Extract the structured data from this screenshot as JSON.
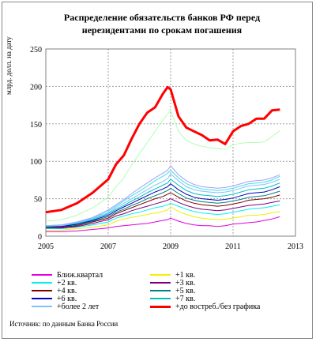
{
  "chart_data": {
    "type": "line",
    "title": "Распределение обязательств банков РФ перед нерезидентами по срокам погашения",
    "ylabel": "млрд. долл. на дату",
    "xlabel": "",
    "xlim": [
      2005,
      2013
    ],
    "ylim": [
      0,
      250
    ],
    "x_ticks": [
      "2005",
      "2007",
      "2009",
      "2011",
      "2013"
    ],
    "y_ticks": [
      "0",
      "50",
      "100",
      "150",
      "200",
      "250"
    ],
    "grid": true,
    "legend_position": "bottom",
    "x": [
      2005.0,
      2005.5,
      2006.0,
      2006.5,
      2007.0,
      2007.25,
      2007.5,
      2007.75,
      2008.0,
      2008.25,
      2008.5,
      2008.75,
      2008.9,
      2009.0,
      2009.25,
      2009.5,
      2009.75,
      2010.0,
      2010.25,
      2010.5,
      2010.75,
      2011.0,
      2011.25,
      2011.5,
      2011.75,
      2012.0,
      2012.25,
      2012.5
    ],
    "series": [
      {
        "name": "Ближ.квартал",
        "color": "#e000e0",
        "width": 1,
        "values": [
          6,
          6,
          7,
          9,
          11,
          13,
          14,
          15,
          16,
          17,
          19,
          21,
          22,
          24,
          20,
          17,
          15,
          14,
          14,
          13,
          14,
          16,
          17,
          18,
          19,
          21,
          23,
          26
        ]
      },
      {
        "name": "+1 кв.",
        "color": "#f0f000",
        "width": 1,
        "values": [
          8,
          8,
          10,
          12,
          15,
          20,
          23,
          25,
          27,
          29,
          31,
          33,
          35,
          39,
          33,
          29,
          26,
          24,
          23,
          22,
          23,
          24,
          26,
          28,
          28,
          29,
          31,
          33
        ]
      },
      {
        "name": "+2 кв.",
        "color": "#00f0f0",
        "width": 1,
        "values": [
          10,
          10,
          12,
          15,
          19,
          24,
          27,
          30,
          32,
          35,
          38,
          40,
          42,
          44,
          40,
          36,
          33,
          31,
          30,
          29,
          30,
          32,
          34,
          36,
          37,
          38,
          40,
          42
        ]
      },
      {
        "name": "+3 кв.",
        "color": "#800080",
        "width": 1,
        "values": [
          11,
          11,
          13,
          17,
          22,
          27,
          30,
          34,
          37,
          40,
          43,
          46,
          48,
          50,
          45,
          41,
          38,
          36,
          35,
          34,
          35,
          37,
          39,
          41,
          42,
          43,
          45,
          47
        ]
      },
      {
        "name": "+4 кв.",
        "color": "#800000",
        "width": 1,
        "values": [
          12,
          12,
          14,
          19,
          24,
          30,
          34,
          38,
          42,
          46,
          50,
          53,
          56,
          58,
          52,
          47,
          44,
          42,
          41,
          40,
          41,
          43,
          45,
          48,
          49,
          50,
          52,
          55
        ]
      },
      {
        "name": "+5 кв.",
        "color": "#008080",
        "width": 1,
        "values": [
          12,
          13,
          15,
          20,
          26,
          32,
          36,
          41,
          45,
          50,
          54,
          58,
          61,
          64,
          57,
          51,
          48,
          46,
          45,
          44,
          45,
          47,
          49,
          52,
          53,
          54,
          57,
          60
        ]
      },
      {
        "name": "+6 кв.",
        "color": "#0000c0",
        "width": 1,
        "values": [
          13,
          13,
          16,
          21,
          28,
          34,
          39,
          44,
          49,
          54,
          59,
          63,
          66,
          70,
          62,
          56,
          52,
          50,
          49,
          48,
          49,
          51,
          54,
          57,
          58,
          59,
          62,
          66
        ]
      },
      {
        "name": "+7 кв.",
        "color": "#00c0c0",
        "width": 1,
        "values": [
          13,
          14,
          17,
          22,
          30,
          36,
          41,
          47,
          52,
          58,
          63,
          68,
          71,
          76,
          68,
          61,
          57,
          55,
          54,
          53,
          54,
          56,
          59,
          62,
          63,
          64,
          67,
          71
        ]
      },
      {
        "name": "+более 2 лет",
        "color": "#80c0ff",
        "width": 1,
        "values": [
          14,
          14,
          18,
          23,
          31,
          38,
          44,
          50,
          56,
          62,
          68,
          73,
          77,
          83,
          74,
          66,
          62,
          60,
          59,
          58,
          59,
          61,
          64,
          67,
          68,
          69,
          72,
          76
        ]
      },
      {
        "name": "+до востреб./без графика",
        "color": "#ff0000",
        "width": 3,
        "values": [
          32,
          35,
          44,
          58,
          76,
          96,
          108,
          130,
          150,
          165,
          172,
          190,
          199,
          196,
          160,
          145,
          140,
          135,
          128,
          129,
          123,
          140,
          147,
          150,
          157,
          157,
          168,
          169
        ]
      }
    ],
    "extra_lines": [
      {
        "color": "#b0ffb0",
        "width": 1,
        "values": [
          20,
          22,
          28,
          38,
          52,
          66,
          78,
          95,
          110,
          125,
          140,
          155,
          163,
          168,
          140,
          128,
          123,
          120,
          118,
          117,
          116,
          122,
          124,
          125,
          125,
          126,
          133,
          141
        ]
      },
      {
        "color": "#40e0e0",
        "width": 1,
        "values": [
          14,
          15,
          18,
          24,
          33,
          40,
          47,
          54,
          60,
          67,
          74,
          80,
          84,
          88,
          78,
          70,
          66,
          63,
          62,
          61,
          62,
          64,
          67,
          70,
          71,
          72,
          75,
          80
        ]
      },
      {
        "color": "#a0a0ff",
        "width": 1,
        "values": [
          14,
          15,
          19,
          25,
          35,
          42,
          49,
          57,
          64,
          71,
          78,
          84,
          88,
          94,
          82,
          74,
          69,
          66,
          65,
          64,
          65,
          67,
          70,
          73,
          74,
          75,
          78,
          82
        ]
      }
    ]
  },
  "source": "Источник: по данным Банка России"
}
